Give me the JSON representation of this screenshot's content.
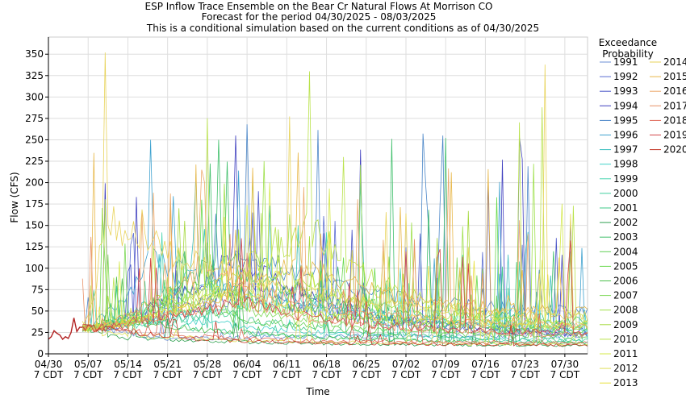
{
  "chart_data": {
    "type": "line",
    "title": "ESP Inflow Trace Ensemble on the Bear Cr Natural Flows At Morrison CO",
    "subtitle1": "Forecast for the period 04/30/2025 - 08/03/2025",
    "subtitle2": "This is a conditional simulation based on the current conditions as of 04/30/2025",
    "xlabel": "Time",
    "ylabel": "Flow (CFS)",
    "ylim": [
      0,
      370
    ],
    "yticks": [
      0,
      25,
      50,
      75,
      100,
      125,
      150,
      175,
      200,
      225,
      250,
      275,
      300,
      325,
      350
    ],
    "xlim": [
      0,
      95
    ],
    "xticks": [
      {
        "day": 0,
        "line1": "04/30",
        "line2": "7 CDT"
      },
      {
        "day": 7,
        "line1": "05/07",
        "line2": "7 CDT"
      },
      {
        "day": 14,
        "line1": "05/14",
        "line2": "7 CDT"
      },
      {
        "day": 21,
        "line1": "05/21",
        "line2": "7 CDT"
      },
      {
        "day": 28,
        "line1": "05/28",
        "line2": "7 CDT"
      },
      {
        "day": 35,
        "line1": "06/04",
        "line2": "7 CDT"
      },
      {
        "day": 42,
        "line1": "06/11",
        "line2": "7 CDT"
      },
      {
        "day": 49,
        "line1": "06/18",
        "line2": "7 CDT"
      },
      {
        "day": 56,
        "line1": "06/25",
        "line2": "7 CDT"
      },
      {
        "day": 63,
        "line1": "07/02",
        "line2": "7 CDT"
      },
      {
        "day": 70,
        "line1": "07/09",
        "line2": "7 CDT"
      },
      {
        "day": 77,
        "line1": "07/16",
        "line2": "7 CDT"
      },
      {
        "day": 84,
        "line1": "07/23",
        "line2": "7 CDT"
      },
      {
        "day": 91,
        "line1": "07/30",
        "line2": "7 CDT"
      }
    ],
    "grid": true,
    "legend_title": [
      "Exceedance",
      "Probability"
    ],
    "legend_placement": "right",
    "observed": {
      "x": [
        0,
        0.5,
        1,
        1.5,
        2,
        2.5,
        3,
        3.5,
        4,
        4.5,
        5,
        5.5,
        6
      ],
      "y": [
        17,
        20,
        27,
        24,
        22,
        17,
        20,
        18,
        25,
        42,
        26,
        31,
        31
      ],
      "color": "#b22222"
    },
    "series": [
      {
        "name": "1991",
        "color": "#6b8fd6",
        "peak": 38,
        "peak_day": 20,
        "end": 22
      },
      {
        "name": "1992",
        "color": "#5a6cd2",
        "peak": 165,
        "peak_day": 36,
        "end": 20
      },
      {
        "name": "1993",
        "color": "#4a55c8",
        "peak": 190,
        "peak_day": 37,
        "end": 24
      },
      {
        "name": "1994",
        "color": "#3f3fbf",
        "peak": 255,
        "peak_day": 33,
        "end": 17
      },
      {
        "name": "1995",
        "color": "#4a86c8",
        "peak": 268,
        "peak_day": 35,
        "end": 45
      },
      {
        "name": "1996",
        "color": "#3fa2cf",
        "peak": 250,
        "peak_day": 18,
        "end": 22
      },
      {
        "name": "1997",
        "color": "#3fbfbf",
        "peak": 210,
        "peak_day": 26,
        "end": 28
      },
      {
        "name": "1998",
        "color": "#40d0c8",
        "peak": 95,
        "peak_day": 22,
        "end": 15
      },
      {
        "name": "1999",
        "color": "#49d6b0",
        "peak": 150,
        "peak_day": 44,
        "end": 30
      },
      {
        "name": "2000",
        "color": "#3fcf9f",
        "peak": 85,
        "peak_day": 17,
        "end": 12
      },
      {
        "name": "2001",
        "color": "#3fc98a",
        "peak": 110,
        "peak_day": 29,
        "end": 14
      },
      {
        "name": "2002",
        "color": "#2fa050",
        "peak": 45,
        "peak_day": 10,
        "end": 9
      },
      {
        "name": "2003",
        "color": "#3fbf6a",
        "peak": 250,
        "peak_day": 30,
        "end": 35
      },
      {
        "name": "2004",
        "color": "#5fcf55",
        "peak": 120,
        "peak_day": 24,
        "end": 18
      },
      {
        "name": "2005",
        "color": "#66d94a",
        "peak": 180,
        "peak_day": 27,
        "end": 25
      },
      {
        "name": "2006",
        "color": "#4bbf4b",
        "peak": 90,
        "peak_day": 12,
        "end": 11
      },
      {
        "name": "2007",
        "color": "#7fd95a",
        "peak": 130,
        "peak_day": 28,
        "end": 22
      },
      {
        "name": "2008",
        "color": "#9ee04a",
        "peak": 225,
        "peak_day": 38,
        "end": 30
      },
      {
        "name": "2009",
        "color": "#a6d93f",
        "peak": 170,
        "peak_day": 23,
        "end": 28
      },
      {
        "name": "2010",
        "color": "#b9e24a",
        "peak": 330,
        "peak_day": 46,
        "end": 26
      },
      {
        "name": "2011",
        "color": "#d4e84a",
        "peak": 200,
        "peak_day": 39,
        "end": 40
      },
      {
        "name": "2012",
        "color": "#dfe05a",
        "peak": 55,
        "peak_day": 9,
        "end": 10
      },
      {
        "name": "2013",
        "color": "#e8e03f",
        "peak": 160,
        "peak_day": 31,
        "end": 32
      },
      {
        "name": "2014",
        "color": "#e8d35a",
        "peak": 352,
        "peak_day": 10,
        "end": 38
      },
      {
        "name": "2015",
        "color": "#e8b84a",
        "peak": 235,
        "peak_day": 44,
        "end": 45
      },
      {
        "name": "2016",
        "color": "#eda86a",
        "peak": 215,
        "peak_day": 27,
        "end": 28
      },
      {
        "name": "2017",
        "color": "#e89066",
        "peak": 140,
        "peak_day": 32,
        "end": 20
      },
      {
        "name": "2018",
        "color": "#e06a5a",
        "peak": 50,
        "peak_day": 21,
        "end": 12
      },
      {
        "name": "2019",
        "color": "#d2464a",
        "peak": 135,
        "peak_day": 34,
        "end": 22
      },
      {
        "name": "2020",
        "color": "#c43a2a",
        "peak": 40,
        "peak_day": 22,
        "end": 10
      }
    ]
  }
}
